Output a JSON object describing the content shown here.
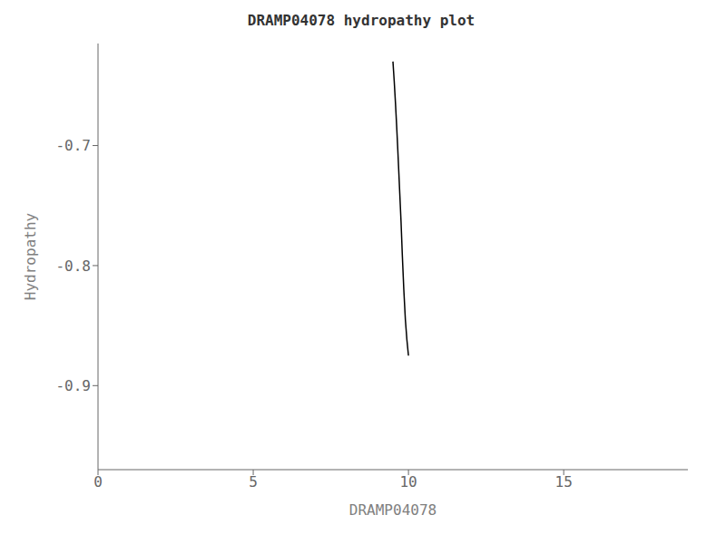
{
  "chart_data": {
    "type": "line",
    "title": "DRAMP04078 hydropathy plot",
    "xlabel": "DRAMP04078",
    "ylabel": "Hydropathy",
    "x": [
      9.5,
      9.52,
      9.54,
      9.56,
      9.58,
      9.6,
      9.62,
      9.65,
      9.68,
      9.72,
      9.76,
      9.8,
      9.85,
      9.9,
      9.95,
      10.0
    ],
    "values": [
      -0.63,
      -0.638,
      -0.646,
      -0.655,
      -0.664,
      -0.674,
      -0.684,
      -0.7,
      -0.717,
      -0.74,
      -0.763,
      -0.79,
      -0.82,
      -0.845,
      -0.862,
      -0.875
    ],
    "color": "#000000",
    "xlim": [
      0,
      19
    ],
    "ylim": [
      -0.97,
      -0.615
    ],
    "xticks": [
      0,
      5,
      10,
      15
    ],
    "yticks": [
      -0.9,
      -0.8,
      -0.7
    ],
    "grid": false
  }
}
